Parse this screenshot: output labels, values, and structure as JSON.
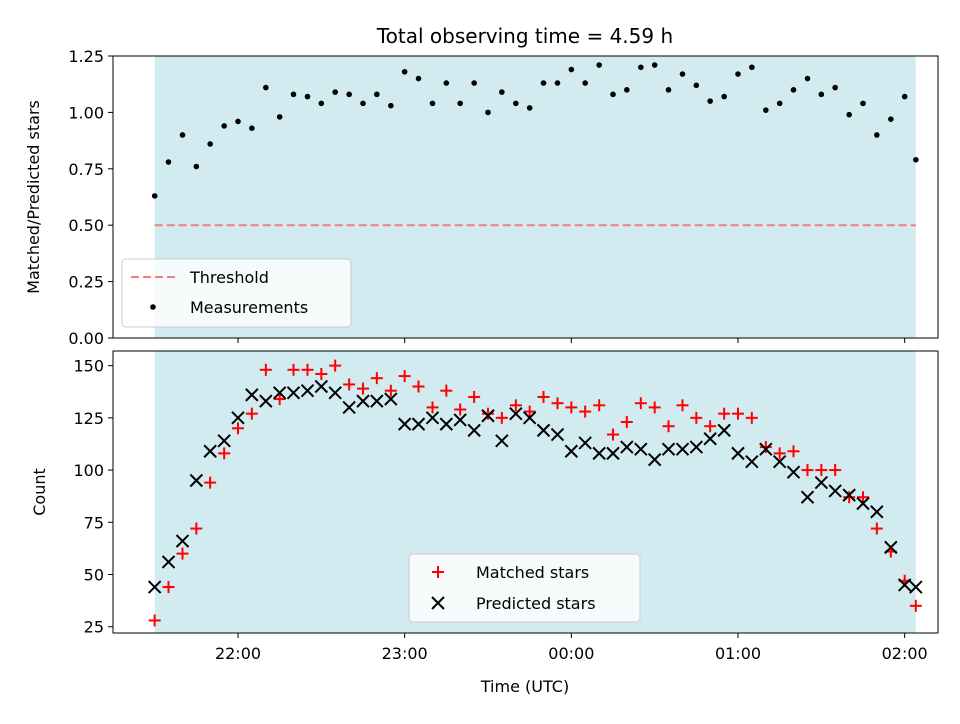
{
  "chart_data": [
    {
      "type": "scatter",
      "title": "Total observing time = 4.59 h",
      "ylabel": "Matched/Predicted stars",
      "xlabel": "",
      "ylim": [
        0,
        1.25
      ],
      "yticks": [
        "0.00",
        "0.25",
        "0.50",
        "0.75",
        "1.00",
        "1.25"
      ],
      "xticks": [],
      "grid": false,
      "legend_position": "lower-left",
      "shaded_span_color": "#d2ebf0",
      "threshold": {
        "name": "Threshold",
        "value": 0.5,
        "color": "#f08080"
      },
      "series": [
        {
          "name": "Measurements",
          "color": "#000000",
          "x": [
            21.5,
            21.583,
            21.667,
            21.75,
            21.833,
            21.917,
            22.0,
            22.083,
            22.167,
            22.25,
            22.333,
            22.417,
            22.5,
            22.583,
            22.667,
            22.75,
            22.833,
            22.917,
            23.0,
            23.083,
            23.167,
            23.25,
            23.333,
            23.417,
            23.5,
            23.583,
            23.667,
            23.75,
            23.833,
            23.917,
            24.0,
            24.083,
            24.167,
            24.25,
            24.333,
            24.417,
            24.5,
            24.583,
            24.667,
            24.75,
            24.833,
            24.917,
            25.0,
            25.083,
            25.167,
            25.25,
            25.333,
            25.417,
            25.5,
            25.583,
            25.667,
            25.75,
            25.833,
            25.917,
            26.0,
            26.067
          ],
          "y": [
            0.63,
            0.78,
            0.9,
            0.76,
            0.86,
            0.94,
            0.96,
            0.93,
            1.11,
            0.98,
            1.08,
            1.07,
            1.04,
            1.09,
            1.08,
            1.04,
            1.08,
            1.03,
            1.18,
            1.15,
            1.04,
            1.13,
            1.04,
            1.13,
            1.0,
            1.09,
            1.04,
            1.02,
            1.13,
            1.13,
            1.19,
            1.13,
            1.21,
            1.08,
            1.1,
            1.2,
            1.21,
            1.1,
            1.17,
            1.12,
            1.05,
            1.07,
            1.17,
            1.2,
            1.01,
            1.04,
            1.1,
            1.15,
            1.08,
            1.11,
            0.99,
            1.04,
            0.9,
            0.97,
            1.07,
            0.79
          ]
        }
      ]
    },
    {
      "type": "scatter",
      "title": "",
      "ylabel": "Count",
      "xlabel": "Time (UTC)",
      "ylim": [
        22,
        157
      ],
      "yticks": [
        "25",
        "50",
        "75",
        "100",
        "125",
        "150"
      ],
      "xlim": [
        21.25,
        26.2
      ],
      "xticks": [
        "22:00",
        "23:00",
        "00:00",
        "01:00",
        "02:00"
      ],
      "grid": false,
      "legend_position": "lower-center",
      "shaded_span": [
        "21:30",
        "02:04"
      ],
      "shaded_span_color": "#d2ebf0",
      "series": [
        {
          "name": "Matched stars",
          "marker": "plus",
          "color": "#ff0000",
          "x": [
            21.5,
            21.583,
            21.667,
            21.75,
            21.833,
            21.917,
            22.0,
            22.083,
            22.167,
            22.25,
            22.333,
            22.417,
            22.5,
            22.583,
            22.667,
            22.75,
            22.833,
            22.917,
            23.0,
            23.083,
            23.167,
            23.25,
            23.333,
            23.417,
            23.5,
            23.583,
            23.667,
            23.75,
            23.833,
            23.917,
            24.0,
            24.083,
            24.167,
            24.25,
            24.333,
            24.417,
            24.5,
            24.583,
            24.667,
            24.75,
            24.833,
            24.917,
            25.0,
            25.083,
            25.167,
            25.25,
            25.333,
            25.417,
            25.5,
            25.583,
            25.667,
            25.75,
            25.833,
            25.917,
            26.0,
            26.067
          ],
          "y": [
            28,
            44,
            60,
            72,
            94,
            108,
            120,
            127,
            148,
            134,
            148,
            148,
            146,
            150,
            141,
            139,
            144,
            138,
            145,
            140,
            130,
            138,
            129,
            135,
            127,
            125,
            131,
            128,
            135,
            132,
            130,
            128,
            131,
            117,
            123,
            132,
            130,
            121,
            131,
            125,
            121,
            127,
            127,
            125,
            111,
            108,
            109,
            100,
            100,
            100,
            87,
            87,
            72,
            61,
            47,
            35
          ]
        },
        {
          "name": "Predicted stars",
          "marker": "x",
          "color": "#000000",
          "x": [
            21.5,
            21.583,
            21.667,
            21.75,
            21.833,
            21.917,
            22.0,
            22.083,
            22.167,
            22.25,
            22.333,
            22.417,
            22.5,
            22.583,
            22.667,
            22.75,
            22.833,
            22.917,
            23.0,
            23.083,
            23.167,
            23.25,
            23.333,
            23.417,
            23.5,
            23.583,
            23.667,
            23.75,
            23.833,
            23.917,
            24.0,
            24.083,
            24.167,
            24.25,
            24.333,
            24.417,
            24.5,
            24.583,
            24.667,
            24.75,
            24.833,
            24.917,
            25.0,
            25.083,
            25.167,
            25.25,
            25.333,
            25.417,
            25.5,
            25.583,
            25.667,
            25.75,
            25.833,
            25.917,
            26.0,
            26.067
          ],
          "y": [
            44,
            56,
            66,
            95,
            109,
            114,
            125,
            136,
            133,
            137,
            137,
            138,
            140,
            137,
            130,
            133,
            133,
            134,
            122,
            122,
            125,
            122,
            124,
            119,
            126,
            114,
            127,
            125,
            119,
            117,
            109,
            113,
            108,
            108,
            111,
            110,
            105,
            110,
            110,
            111,
            115,
            119,
            108,
            104,
            110,
            104,
            99,
            87,
            94,
            90,
            88,
            84,
            80,
            63,
            45,
            44
          ]
        }
      ]
    }
  ]
}
